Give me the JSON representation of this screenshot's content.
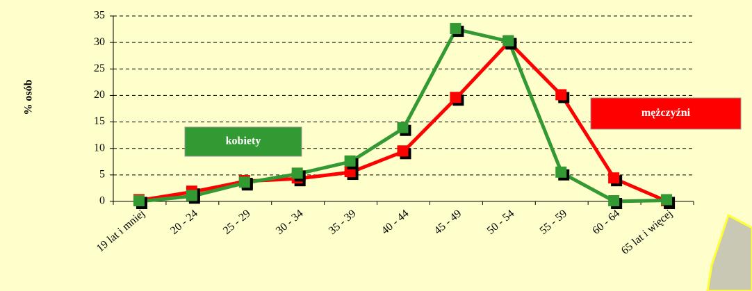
{
  "chart_data": {
    "type": "line",
    "y_label": "% osób",
    "categories": [
      "19 lat i mniej",
      "20 - 24",
      "25 - 29",
      "30 - 34",
      "35 - 39",
      "40 - 44",
      "45 - 49",
      "50 - 54",
      "55 - 59",
      "60 - 64",
      "65 lat i więcej"
    ],
    "series": [
      {
        "name": "mężczyźni",
        "color": "#ff0000",
        "values": [
          0.2,
          1.8,
          3.8,
          4.3,
          5.5,
          9.4,
          19.5,
          30.1,
          20,
          4.3,
          0
        ]
      },
      {
        "name": "kobiety",
        "color": "#339933",
        "values": [
          0,
          1.0,
          3.5,
          5.2,
          7.5,
          13.8,
          32.5,
          30.2,
          5.4,
          0,
          0.2
        ]
      }
    ],
    "ylim": [
      0,
      35
    ],
    "yticks": [
      0,
      5,
      10,
      15,
      20,
      25,
      30,
      35
    ],
    "grid": true
  }
}
